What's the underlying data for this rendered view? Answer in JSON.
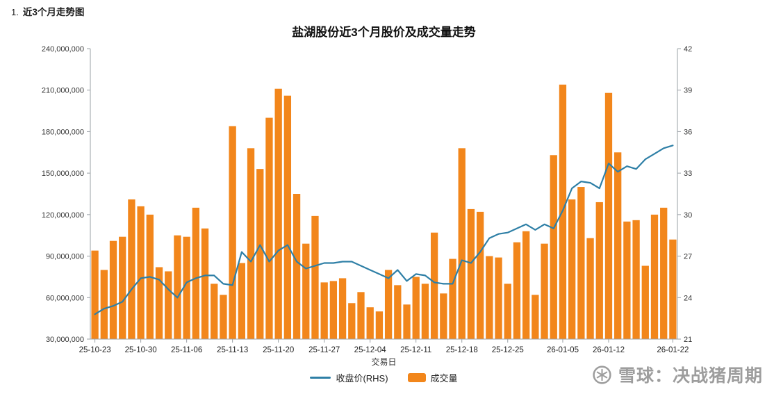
{
  "page": {
    "list_number": "1.",
    "section_title": "近3个月走势图"
  },
  "chart_data": {
    "type": "combo-bar-line",
    "title": "盐湖股份近3个月股价及成交量走势",
    "xlabel": "交易日",
    "grid": false,
    "legend_position": "bottom",
    "x_tick_labels": [
      "25-10-23",
      "25-10-30",
      "25-11-06",
      "25-11-13",
      "25-11-20",
      "25-11-27",
      "25-12-04",
      "25-12-11",
      "25-12-18",
      "25-12-25",
      "26-01-05",
      "26-01-12",
      "26-01-22"
    ],
    "x_tick_indices": [
      0,
      5,
      10,
      15,
      20,
      25,
      30,
      35,
      40,
      45,
      51,
      56,
      63
    ],
    "left_axis": {
      "series": "成交量",
      "min": 30000000,
      "max": 240000000,
      "tick_values": [
        30000000,
        60000000,
        90000000,
        120000000,
        150000000,
        180000000,
        210000000,
        240000000
      ],
      "tick_labels": [
        "30,000,000",
        "60,000,000",
        "90,000,000",
        "120,000,000",
        "150,000,000",
        "180,000,000",
        "210,000,000",
        "240,000,000"
      ]
    },
    "right_axis": {
      "series": "收盘价(RHS)",
      "min": 21,
      "max": 42,
      "tick_values": [
        21,
        24,
        27,
        30,
        33,
        36,
        39,
        42
      ],
      "tick_labels": [
        "21",
        "24",
        "27",
        "30",
        "33",
        "36",
        "39",
        "42"
      ]
    },
    "series": [
      {
        "name": "成交量",
        "type": "bar",
        "axis": "left",
        "color": "#F2861B",
        "values": [
          94000000,
          80000000,
          101000000,
          104000000,
          131000000,
          126000000,
          120000000,
          82000000,
          79000000,
          105000000,
          104000000,
          125000000,
          110000000,
          70000000,
          62000000,
          184000000,
          85000000,
          168000000,
          153000000,
          190000000,
          211000000,
          206000000,
          135000000,
          99000000,
          119000000,
          71000000,
          72000000,
          74000000,
          56000000,
          64000000,
          53000000,
          50000000,
          80000000,
          69000000,
          55000000,
          75000000,
          70000000,
          107000000,
          63000000,
          88000000,
          168000000,
          124000000,
          122000000,
          90000000,
          89000000,
          70000000,
          100000000,
          108000000,
          62000000,
          99000000,
          163000000,
          214000000,
          131000000,
          140000000,
          103000000,
          129000000,
          208000000,
          165000000,
          115000000,
          116000000,
          83000000,
          120000000,
          125000000,
          102000000
        ]
      },
      {
        "name": "收盘价(RHS)",
        "type": "line",
        "axis": "right",
        "color": "#2E7FA6",
        "values": [
          22.8,
          23.2,
          23.4,
          23.7,
          24.6,
          25.4,
          25.5,
          25.3,
          24.6,
          24.0,
          25.1,
          25.4,
          25.6,
          25.6,
          25.0,
          24.9,
          27.3,
          26.6,
          27.8,
          26.6,
          27.4,
          27.8,
          26.6,
          26.1,
          26.3,
          26.5,
          26.5,
          26.6,
          26.6,
          26.3,
          26.0,
          25.7,
          25.4,
          26.0,
          25.2,
          25.7,
          25.6,
          25.1,
          25.0,
          25.0,
          26.7,
          26.5,
          27.3,
          28.3,
          28.6,
          28.7,
          29.0,
          29.3,
          28.9,
          29.3,
          29.0,
          30.3,
          31.9,
          32.4,
          32.3,
          31.9,
          33.7,
          33.1,
          33.5,
          33.3,
          34.0,
          34.4,
          34.8,
          35.0
        ]
      }
    ]
  },
  "legend": {
    "items": [
      {
        "label": "收盘价(RHS)",
        "swatch": "line",
        "color": "#2E7FA6"
      },
      {
        "label": "成交量",
        "swatch": "bar",
        "color": "#F2861B"
      }
    ]
  },
  "watermark": {
    "icon": "snowball-logo-icon",
    "text": "雪球：决战猪周期"
  }
}
